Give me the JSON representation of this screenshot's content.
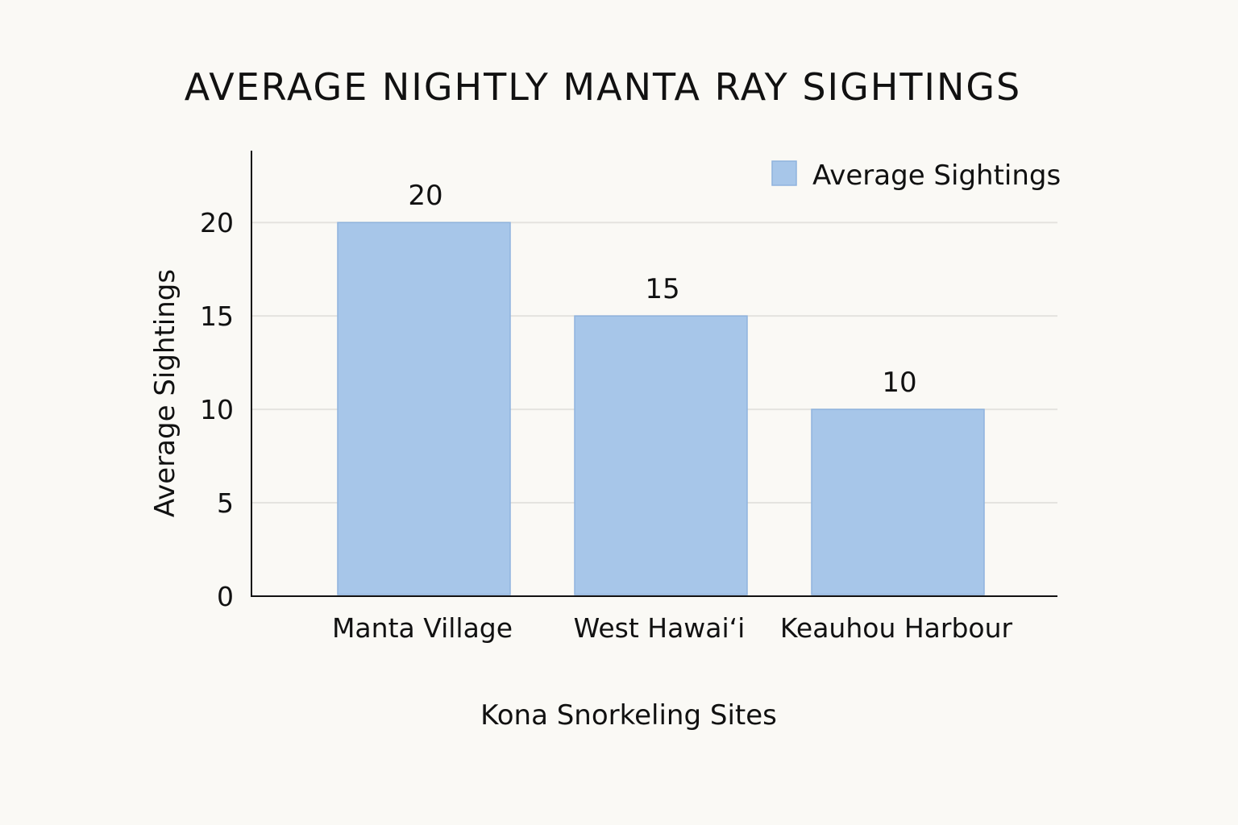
{
  "chart_data": {
    "type": "bar",
    "title": "AVERAGE NIGHTLY MANTA RAY SIGHTINGS",
    "xlabel": "Kona Snorkeling Sites",
    "ylabel": "Average Sightings",
    "categories": [
      "Manta Village",
      "West Hawaiʻi",
      "Keauhou Harbour"
    ],
    "series": [
      {
        "name": "Average Sightings",
        "values": [
          20,
          15,
          10
        ]
      }
    ],
    "data_labels": [
      "20",
      "15",
      "10"
    ],
    "yticks": [
      0,
      5,
      10,
      15,
      20
    ],
    "ylim": [
      0,
      23.2
    ],
    "grid": true,
    "legend": "top-right",
    "colors": {
      "bar": "#a7c6e9",
      "bar_edge": "#8fb3de",
      "grid": "#e4e3df",
      "axis": "#111111",
      "background": "#faf9f5"
    }
  }
}
